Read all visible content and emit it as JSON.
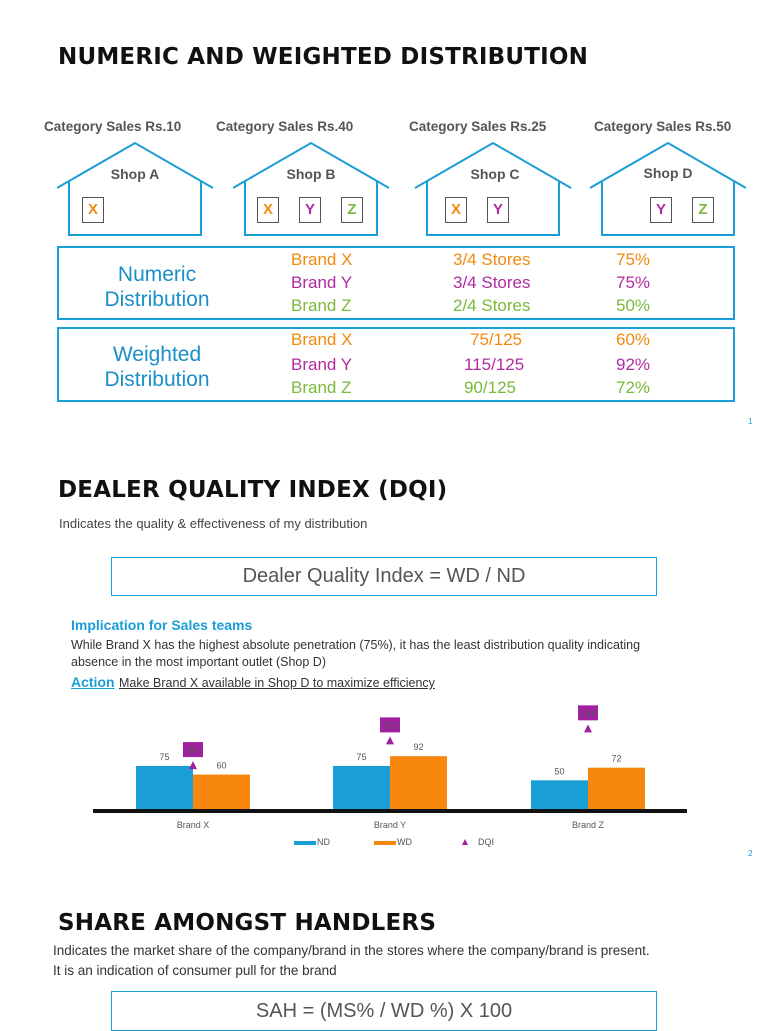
{
  "slide1": {
    "title": "NUMERIC AND WEIGHTED DISTRIBUTION",
    "page_number": "1",
    "shops": [
      {
        "category_sales": "Category Sales Rs.10",
        "name": "Shop A",
        "brands": [
          "X"
        ]
      },
      {
        "category_sales": "Category Sales Rs.40",
        "name": "Shop B",
        "brands": [
          "X",
          "Y",
          "Z"
        ]
      },
      {
        "category_sales": "Category Sales Rs.25",
        "name": "Shop C",
        "brands": [
          "X",
          "Y"
        ]
      },
      {
        "category_sales": "Category Sales Rs.50",
        "name": "Shop D",
        "brands": [
          "Y",
          "Z"
        ]
      }
    ],
    "numeric": {
      "label_line1": "Numeric",
      "label_line2": "Distribution",
      "rows": [
        {
          "brand": "Brand X",
          "stores": "3/4 Stores",
          "pct": "75%"
        },
        {
          "brand": "Brand Y",
          "stores": "3/4 Stores",
          "pct": "75%"
        },
        {
          "brand": "Brand Z",
          "stores": "2/4 Stores",
          "pct": "50%"
        }
      ]
    },
    "weighted": {
      "label_line1": "Weighted",
      "label_line2": "Distribution",
      "rows": [
        {
          "brand": "Brand X",
          "stores": "75/125",
          "pct": "60%"
        },
        {
          "brand": "Brand Y",
          "stores": "115/125",
          "pct": "92%"
        },
        {
          "brand": "Brand Z",
          "stores": "90/125",
          "pct": "72%"
        }
      ]
    }
  },
  "slide2": {
    "title": "DEALER QUALITY INDEX (DQI)",
    "subtitle": "Indicates the quality & effectiveness of my distribution",
    "formula": "Dealer Quality Index = WD / ND",
    "implication_heading": "Implication for Sales teams",
    "implication_line1": "While Brand X has the highest absolute penetration (75%), it has the least distribution quality indicating",
    "implication_line2": "absence in the most important outlet (Shop D)",
    "action_label": "Action",
    "action_text": "Make Brand X available in Shop D to maximize efficiency",
    "page_number": "2"
  },
  "slide3": {
    "title": "SHARE AMONGST HANDLERS",
    "line1": "Indicates the market share of the company/brand in the stores where the company/brand is present.",
    "line2": "It is an indication of consumer pull for the brand",
    "formula": "SAH = (MS% / WD %) X 100"
  },
  "chart_data": {
    "type": "bar",
    "categories": [
      "Brand X",
      "Brand Y",
      "Brand Z"
    ],
    "series": [
      {
        "name": "ND",
        "values": [
          75,
          75,
          50
        ],
        "color": "#1a9ed6"
      },
      {
        "name": "WD",
        "values": [
          60,
          92,
          72
        ],
        "color": "#f7870e"
      },
      {
        "name": "DQI",
        "values": [
          80,
          123,
          144
        ],
        "color": "#a020a0",
        "marker": "triangle"
      }
    ],
    "legend_position": "bottom",
    "grid": false,
    "ylim": [
      0,
      150
    ]
  }
}
